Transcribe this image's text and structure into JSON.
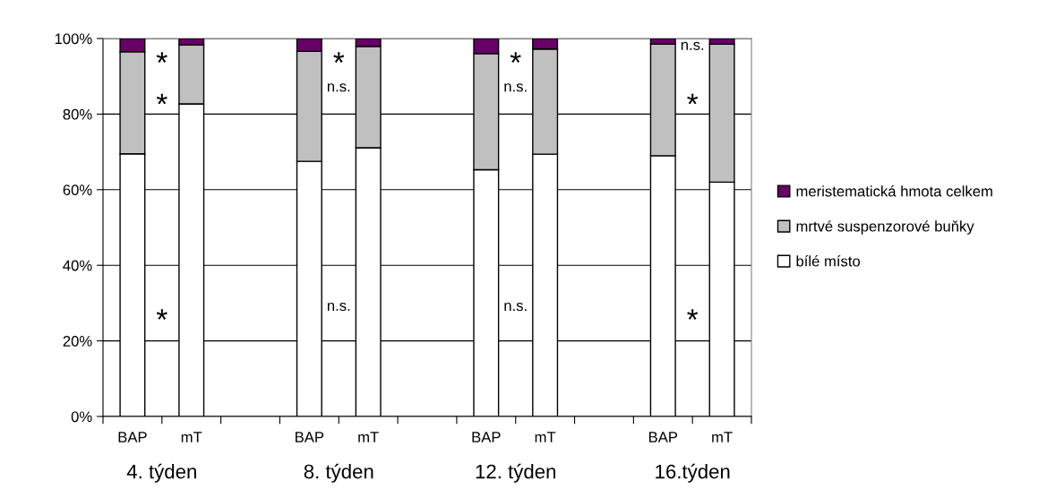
{
  "chart_data": {
    "type": "bar",
    "stacked": true,
    "categories": [
      "BAP",
      "mT",
      null,
      "BAP",
      "mT",
      null,
      "BAP",
      "mT",
      null,
      "BAP",
      "mT"
    ],
    "series": [
      {
        "name": "bílé místo",
        "color": "#ffffff",
        "values": [
          69.5,
          82.7,
          null,
          67.5,
          71.1,
          null,
          65.3,
          69.4,
          null,
          69,
          62
        ]
      },
      {
        "name": "mrtvé suspenzorové buňky",
        "color": "#c0c0c0",
        "values": [
          27,
          15.6,
          null,
          29.1,
          26.8,
          null,
          30.7,
          27.8,
          null,
          29.5,
          36.5
        ]
      },
      {
        "name": "meristematická hmota celkem",
        "color": "#660066",
        "values": [
          3.5,
          1.7,
          null,
          3.4,
          2.1,
          null,
          4,
          2.8,
          null,
          1.5,
          1.5
        ]
      }
    ],
    "ylim": [
      0,
      100
    ],
    "yticks": [
      {
        "value": 0,
        "label": "0%"
      },
      {
        "value": 20,
        "label": "20%"
      },
      {
        "value": 40,
        "label": "40%"
      },
      {
        "value": 60,
        "label": "60%"
      },
      {
        "value": 80,
        "label": "80%"
      },
      {
        "value": 100,
        "label": "100%"
      }
    ],
    "grid": "y",
    "legend": "right",
    "annotations": [
      "4. týden",
      "8. týden",
      "12. týden",
      "16.týden",
      "*",
      "*",
      "*",
      "*",
      "n.s.",
      "n.s.",
      "*",
      "n.s.",
      "n.s.",
      "n.s.",
      "*",
      "*"
    ]
  }
}
